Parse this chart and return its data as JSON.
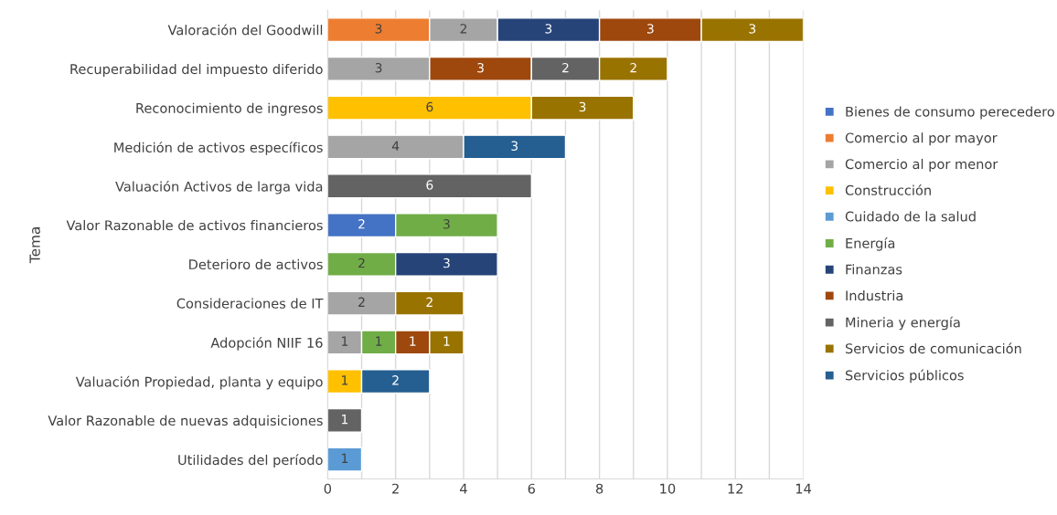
{
  "chart_data": {
    "type": "bar",
    "orientation": "horizontal",
    "stacked": true,
    "ylabel": "Tema",
    "categories": [
      "Valoración del Goodwill",
      "Recuperabilidad del impuesto diferido",
      "Reconocimiento de ingresos",
      "Medición de activos específicos",
      "Valuación Activos de larga vida",
      "Valor Razonable de activos financieros",
      "Deterioro de activos",
      "Consideraciones de IT",
      "Adopción NIIF 16",
      "Valuación Propiedad, planta y equipo",
      "Valor Razonable de nuevas adquisiciones",
      "Utilidades del período"
    ],
    "series": [
      {
        "name": "Bienes de consumo perecedero",
        "color": "#4472c4",
        "values": [
          null,
          null,
          null,
          null,
          null,
          2,
          null,
          null,
          null,
          null,
          null,
          null
        ]
      },
      {
        "name": "Comercio al por mayor",
        "color": "#ed7d31",
        "values": [
          3,
          null,
          null,
          null,
          null,
          null,
          null,
          null,
          null,
          null,
          null,
          null
        ]
      },
      {
        "name": "Comercio al por menor",
        "color": "#a5a5a5",
        "values": [
          2,
          3,
          null,
          4,
          null,
          null,
          null,
          2,
          1,
          null,
          null,
          null
        ]
      },
      {
        "name": "Construcción",
        "color": "#ffc000",
        "values": [
          null,
          null,
          6,
          null,
          null,
          null,
          null,
          null,
          null,
          1,
          null,
          null
        ]
      },
      {
        "name": "Cuidado de la salud",
        "color": "#5b9bd5",
        "values": [
          null,
          null,
          null,
          null,
          null,
          null,
          null,
          null,
          null,
          null,
          null,
          1
        ]
      },
      {
        "name": "Energía",
        "color": "#70ad47",
        "values": [
          null,
          null,
          null,
          null,
          null,
          3,
          2,
          null,
          1,
          null,
          null,
          null
        ]
      },
      {
        "name": "Finanzas",
        "color": "#264478",
        "values": [
          3,
          null,
          null,
          null,
          null,
          null,
          3,
          null,
          null,
          null,
          null,
          null
        ]
      },
      {
        "name": "Industria",
        "color": "#9e480e",
        "values": [
          3,
          3,
          null,
          null,
          null,
          null,
          null,
          null,
          1,
          null,
          null,
          null
        ]
      },
      {
        "name": "Mineria y energía",
        "color": "#636363",
        "values": [
          null,
          2,
          null,
          null,
          6,
          null,
          null,
          null,
          null,
          null,
          1,
          null
        ]
      },
      {
        "name": "Servicios de comunicación",
        "color": "#997300",
        "values": [
          3,
          2,
          3,
          null,
          null,
          null,
          null,
          2,
          1,
          null,
          null,
          null
        ]
      },
      {
        "name": "Servicios públicos",
        "color": "#255e91",
        "values": [
          null,
          null,
          null,
          3,
          null,
          null,
          null,
          null,
          null,
          2,
          null,
          null
        ]
      }
    ],
    "xlim": [
      0,
      14
    ],
    "xticks": [
      0,
      {
        "value": 1,
        "label": null
      },
      2,
      {
        "value": 3,
        "label": null
      },
      4,
      {
        "value": 5,
        "label": null
      },
      6,
      {
        "value": 7,
        "label": null
      },
      8,
      {
        "value": 9,
        "label": null
      },
      10,
      {
        "value": 11,
        "label": null
      },
      12,
      {
        "value": 13,
        "label": null
      },
      14
    ],
    "grid": "x",
    "legend": "right",
    "data_labels": true
  }
}
